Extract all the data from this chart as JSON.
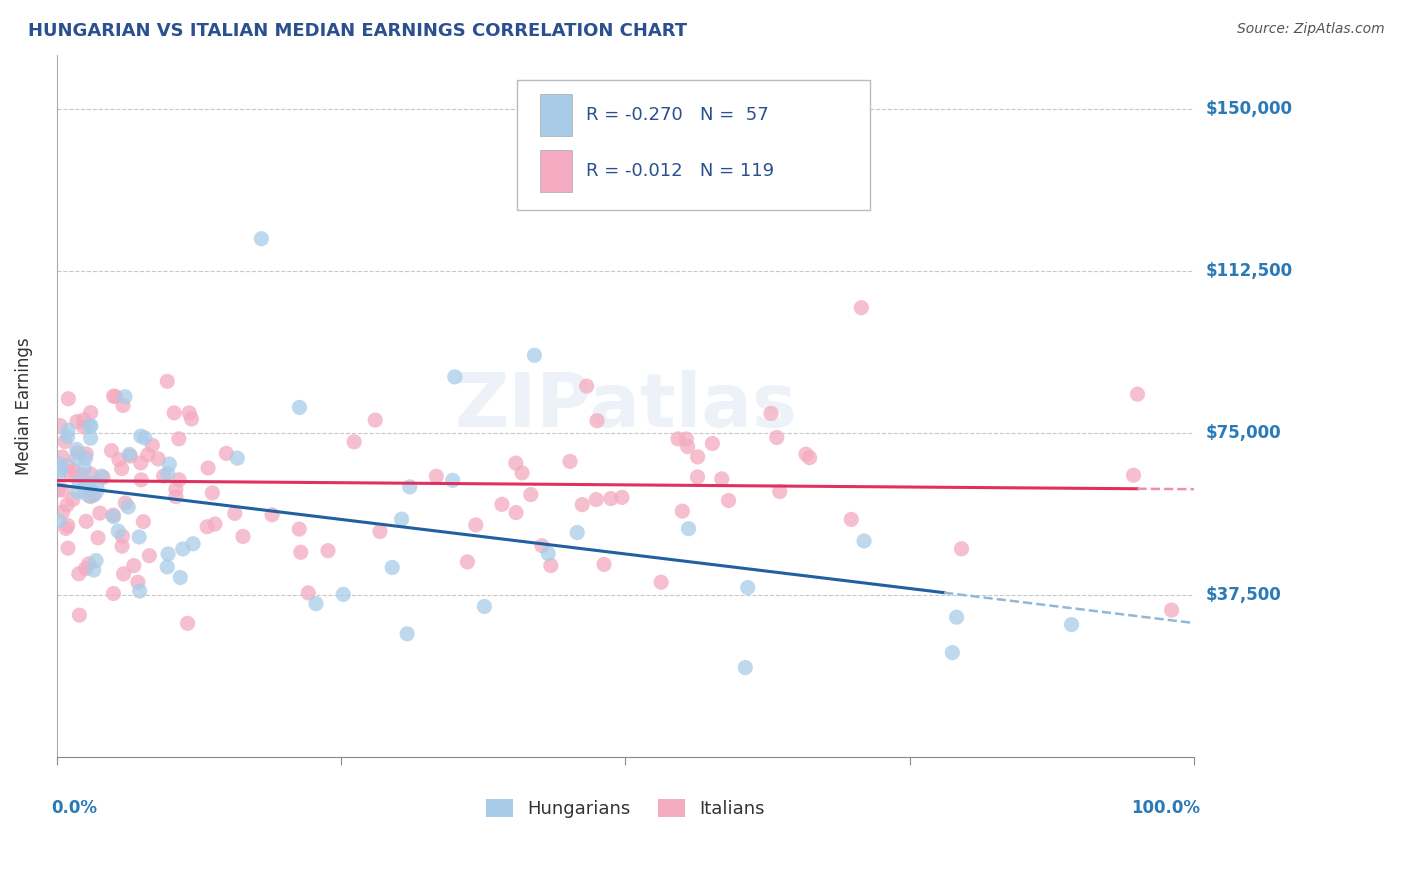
{
  "title": "HUNGARIAN VS ITALIAN MEDIAN EARNINGS CORRELATION CHART",
  "source": "Source: ZipAtlas.com",
  "ylabel": "Median Earnings",
  "ytick_vals": [
    0,
    37500,
    75000,
    112500,
    150000
  ],
  "ytick_labels_right": [
    "",
    "$37,500",
    "$75,000",
    "$112,500",
    "$150,000"
  ],
  "ylim": [
    0,
    162500
  ],
  "xlim": [
    0.0,
    1.0
  ],
  "hungarian_color": "#a8cce8",
  "italian_color": "#f4aac0",
  "trend_hungarian_solid_color": "#2060a0",
  "trend_italian_solid_color": "#e03060",
  "trend_dashed_color": "#90b8d8",
  "title_color": "#2a5090",
  "axis_label_color": "#2a7ab8",
  "source_color": "#555555",
  "background_color": "#ffffff",
  "grid_color": "#c8c8c8",
  "legend_hung_color": "#a8cce8",
  "legend_ital_color": "#f4aac0",
  "hung_R": -0.27,
  "hung_N": 57,
  "ital_R": -0.012,
  "ital_N": 119,
  "hung_intercept": 63000,
  "hung_slope": -32000,
  "ital_intercept": 64000,
  "ital_slope": -2000,
  "watermark": "ZIPatlas"
}
